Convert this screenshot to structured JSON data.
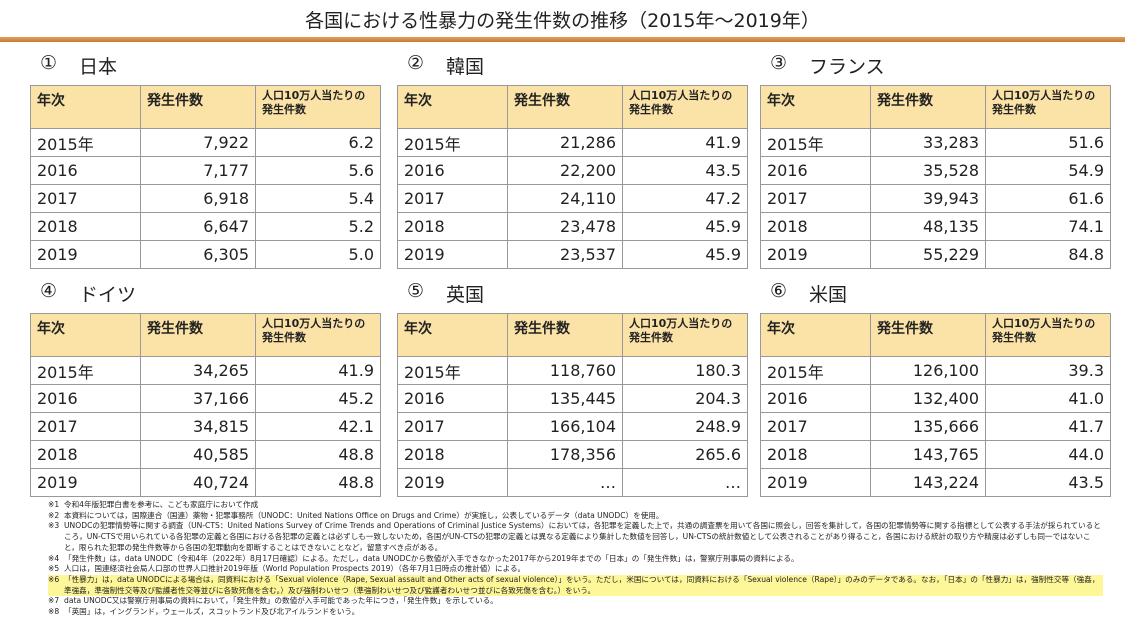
{
  "title": "各国における性暴力の発生件数の推移（2015年～2019年）",
  "columns": [
    "年次",
    "発生件数",
    "人口10万人当たりの発生件数"
  ],
  "tables": [
    {
      "number": "①",
      "country": "日本",
      "rows": [
        [
          "2015年",
          "7,922",
          "6.2"
        ],
        [
          "2016",
          "7,177",
          "5.6"
        ],
        [
          "2017",
          "6,918",
          "5.4"
        ],
        [
          "2018",
          "6,647",
          "5.2"
        ],
        [
          "2019",
          "6,305",
          "5.0"
        ]
      ]
    },
    {
      "number": "②",
      "country": "韓国",
      "rows": [
        [
          "2015年",
          "21,286",
          "41.9"
        ],
        [
          "2016",
          "22,200",
          "43.5"
        ],
        [
          "2017",
          "24,110",
          "47.2"
        ],
        [
          "2018",
          "23,478",
          "45.9"
        ],
        [
          "2019",
          "23,537",
          "45.9"
        ]
      ]
    },
    {
      "number": "③",
      "country": "フランス",
      "rows": [
        [
          "2015年",
          "33,283",
          "51.6"
        ],
        [
          "2016",
          "35,528",
          "54.9"
        ],
        [
          "2017",
          "39,943",
          "61.6"
        ],
        [
          "2018",
          "48,135",
          "74.1"
        ],
        [
          "2019",
          "55,229",
          "84.8"
        ]
      ]
    },
    {
      "number": "④",
      "country": "ドイツ",
      "rows": [
        [
          "2015年",
          "34,265",
          "41.9"
        ],
        [
          "2016",
          "37,166",
          "45.2"
        ],
        [
          "2017",
          "34,815",
          "42.1"
        ],
        [
          "2018",
          "40,585",
          "48.8"
        ],
        [
          "2019",
          "40,724",
          "48.8"
        ]
      ]
    },
    {
      "number": "⑤",
      "country": "英国",
      "rows": [
        [
          "2015年",
          "118,760",
          "180.3"
        ],
        [
          "2016",
          "135,445",
          "204.3"
        ],
        [
          "2017",
          "166,104",
          "248.9"
        ],
        [
          "2018",
          "178,356",
          "265.6"
        ],
        [
          "2019",
          "…",
          "…"
        ]
      ]
    },
    {
      "number": "⑥",
      "country": "米国",
      "rows": [
        [
          "2015年",
          "126,100",
          "39.3"
        ],
        [
          "2016",
          "132,400",
          "41.0"
        ],
        [
          "2017",
          "135,666",
          "41.7"
        ],
        [
          "2018",
          "143,765",
          "44.0"
        ],
        [
          "2019",
          "143,224",
          "43.5"
        ]
      ]
    }
  ],
  "notes": [
    {
      "mark": "※1",
      "text": "令和4年版犯罪白書を参考に、こども家庭庁において作成"
    },
    {
      "mark": "※2",
      "text": "本資料については，国際連合（国連）薬物・犯罪事務所（UNODC：United Nations Office on Drugs and Crime）が実施し，公表しているデータ（data UNODC）を使用。"
    },
    {
      "mark": "※3",
      "text": "UNODCの犯罪情勢等に関する調査（UN-CTS：United Nations Survey of Crime Trends and Operations of Criminal Justice Systems）においては，各犯罪を定義した上で，共通の調査票を用いて各国に照会し，回答を集計して，各国の犯罪情勢等に関する指標として公表する手法が採られているところ，UN-CTSで用いられている各犯罪の定義と各国における各犯罪の定義とは必ずしも一致しないため，各国がUN-CTSの犯罪の定義とは異なる定義により集計した数値を回答し，UN-CTSの統計数値として公表されることがあり得ること，各国における統計の取り方や精度は必ずしも同一ではないこと，限られた犯罪の発生件数等から各国の犯罪動向を即断することはできないことなど，留意すべき点がある。"
    },
    {
      "mark": "※4",
      "text": "「発生件数」は，data UNODC（令和4年（2022年）8月17日確認）による。ただし，data UNODCから数値が入手できなかった2017年から2019年までの「日本」の「発生件数」は，警察庁刑事局の資料による。"
    },
    {
      "mark": "※5",
      "text": "人口は，国連経済社会局人口部の世界人口推計2019年版（World Population Prospects 2019）（各年7月1日時点の推計値）による。"
    },
    {
      "mark": "※6",
      "text": "「性暴力」は，data UNODCによる場合は，同資料における「Sexual violence（Rape, Sexual assault and Other acts of sexual violence）」をいう。ただし，米国については，同資料における「Sexual violence（Rape）」のみのデータである。なお，「日本」の「性暴力」は，強制性交等（強姦，準強姦，準強制性交等及び監護者性交等並びに各致死傷を含む。）及び強制わいせつ（準強制わいせつ及び監護者わいせつ並びに各致死傷を含む。）をいう。",
      "highlight": true
    },
    {
      "mark": "※7",
      "text": "data UNODC又は警察庁刑事局の資料において，「発生件数」の数値が入手可能であった年につき，「発生件数」を示している。"
    },
    {
      "mark": "※8",
      "text": "「英国」は，イングランド，ウェールズ，スコットランド及び北アイルランドをいう。"
    }
  ]
}
